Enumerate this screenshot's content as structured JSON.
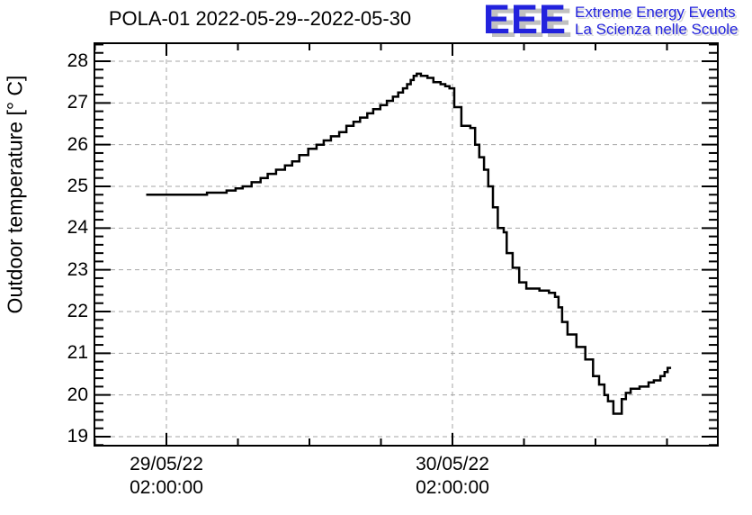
{
  "header": {
    "title": "POLA-01 2022-05-29--2022-05-30"
  },
  "logo": {
    "acronym": "EEE",
    "line1": "Extreme Energy Events",
    "line2": "La Scienza nelle Scuole",
    "blue": "#2222dd",
    "shadow": "#c0c0c0"
  },
  "chart_data": {
    "type": "line",
    "style": "step",
    "title": "POLA-01 2022-05-29--2022-05-30",
    "ylabel": "Outdoor temperature [° C]",
    "xlabel": "",
    "ylim": [
      18.78,
      28.44
    ],
    "xlim_hours": [
      -6.05,
      46.3
    ],
    "x_reference": "hours since 29/05/22 02:00:00",
    "grid": "dashed",
    "grid_color": "#a6a6a6",
    "line_color": "#000000",
    "y_major_ticks": [
      19,
      20,
      21,
      22,
      23,
      24,
      25,
      26,
      27,
      28
    ],
    "y_minor_step": 0.2,
    "x_major_ticks": [
      {
        "hour": 0,
        "line1": "29/05/22",
        "line2": "02:00:00"
      },
      {
        "hour": 24,
        "line1": "30/05/22",
        "line2": "02:00:00"
      }
    ],
    "x_minor_step_hours": 6,
    "series": [
      {
        "name": "outdoor_temperature",
        "end_hour": 42.35,
        "points": [
          [
            -1.7,
            24.8
          ],
          [
            3.4,
            24.85
          ],
          [
            5.05,
            24.9
          ],
          [
            5.8,
            24.95
          ],
          [
            6.4,
            25.0
          ],
          [
            7.15,
            25.1
          ],
          [
            7.9,
            25.2
          ],
          [
            8.5,
            25.3
          ],
          [
            9.2,
            25.4
          ],
          [
            9.95,
            25.5
          ],
          [
            10.55,
            25.6
          ],
          [
            11.15,
            25.75
          ],
          [
            11.9,
            25.9
          ],
          [
            12.6,
            26.0
          ],
          [
            13.2,
            26.1
          ],
          [
            13.8,
            26.2
          ],
          [
            14.5,
            26.3
          ],
          [
            15.1,
            26.45
          ],
          [
            15.7,
            26.55
          ],
          [
            16.25,
            26.65
          ],
          [
            16.85,
            26.75
          ],
          [
            17.35,
            26.85
          ],
          [
            17.95,
            26.95
          ],
          [
            18.5,
            27.05
          ],
          [
            19.0,
            27.15
          ],
          [
            19.45,
            27.25
          ],
          [
            19.85,
            27.35
          ],
          [
            20.2,
            27.45
          ],
          [
            20.5,
            27.55
          ],
          [
            20.75,
            27.65
          ],
          [
            21.0,
            27.7
          ],
          [
            21.35,
            27.65
          ],
          [
            21.9,
            27.6
          ],
          [
            22.4,
            27.5
          ],
          [
            23.0,
            27.45
          ],
          [
            23.4,
            27.4
          ],
          [
            23.75,
            27.35
          ],
          [
            24.15,
            26.9
          ],
          [
            24.75,
            26.45
          ],
          [
            25.5,
            26.4
          ],
          [
            25.9,
            26.0
          ],
          [
            26.25,
            25.7
          ],
          [
            26.65,
            25.4
          ],
          [
            27.0,
            25.0
          ],
          [
            27.4,
            24.5
          ],
          [
            27.8,
            24.0
          ],
          [
            28.3,
            23.9
          ],
          [
            28.55,
            23.4
          ],
          [
            29.05,
            23.05
          ],
          [
            29.6,
            22.7
          ],
          [
            30.2,
            22.55
          ],
          [
            31.3,
            22.5
          ],
          [
            32.1,
            22.45
          ],
          [
            32.6,
            22.35
          ],
          [
            32.9,
            22.1
          ],
          [
            33.2,
            21.75
          ],
          [
            33.65,
            21.45
          ],
          [
            34.4,
            21.15
          ],
          [
            35.15,
            20.85
          ],
          [
            35.8,
            20.45
          ],
          [
            36.3,
            20.25
          ],
          [
            36.75,
            20.0
          ],
          [
            37.05,
            19.85
          ],
          [
            37.5,
            19.55
          ],
          [
            38.2,
            19.9
          ],
          [
            38.55,
            20.05
          ],
          [
            38.95,
            20.15
          ],
          [
            39.7,
            20.2
          ],
          [
            40.45,
            20.3
          ],
          [
            40.9,
            20.35
          ],
          [
            41.45,
            20.45
          ],
          [
            41.8,
            20.55
          ],
          [
            42.05,
            20.65
          ]
        ]
      }
    ]
  }
}
